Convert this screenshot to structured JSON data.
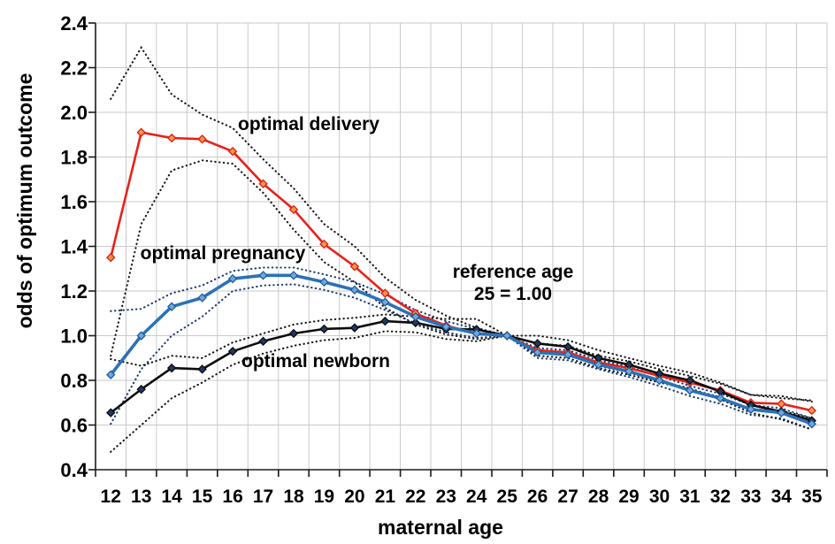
{
  "figure": {
    "y_axis_title": "odds of optimum outcome",
    "x_axis_title": "maternal age",
    "annotations": {
      "delivery": "optimal delivery",
      "pregnancy": "optimal pregnancy",
      "newborn": "optimal newborn",
      "reference_line1": "reference age",
      "reference_line2": "25 = 1.00"
    }
  },
  "chart_data": {
    "type": "line",
    "title": "",
    "xlabel": "maternal age",
    "ylabel": "odds of optimum outcome",
    "x": [
      12,
      13,
      14,
      15,
      16,
      17,
      18,
      19,
      20,
      21,
      22,
      23,
      24,
      25,
      26,
      27,
      28,
      29,
      30,
      31,
      32,
      33,
      34,
      35
    ],
    "ylim": [
      0.4,
      2.4
    ],
    "ytick_step": 0.2,
    "yticks": [
      0.4,
      0.6,
      0.8,
      1.0,
      1.2,
      1.4,
      1.6,
      1.8,
      2.0,
      2.2,
      2.4
    ],
    "grid": true,
    "legend_position": "none",
    "reference_note": "reference age 25 = 1.00",
    "series": [
      {
        "name": "optimal delivery",
        "line_color": "#e8211a",
        "line_width": 2.6,
        "marker": "diamond",
        "marker_fill": "#f79646",
        "marker_stroke": "#d81e14",
        "ci_color": "#161616",
        "values": [
          1.35,
          1.91,
          1.885,
          1.88,
          1.825,
          1.68,
          1.565,
          1.41,
          1.31,
          1.19,
          1.1,
          1.045,
          1.01,
          1.0,
          0.935,
          0.925,
          0.88,
          0.855,
          0.82,
          0.79,
          0.755,
          0.7,
          0.695,
          0.665
        ],
        "ci_upper": [
          2.06,
          2.29,
          2.08,
          1.99,
          1.93,
          1.79,
          1.66,
          1.5,
          1.4,
          1.26,
          1.16,
          1.09,
          1.035,
          1.0,
          0.965,
          0.955,
          0.91,
          0.885,
          0.85,
          0.82,
          0.785,
          0.735,
          0.73,
          0.705
        ],
        "ci_lower": [
          0.91,
          1.5,
          1.74,
          1.785,
          1.77,
          1.64,
          1.475,
          1.33,
          1.24,
          1.125,
          1.05,
          1.005,
          0.985,
          1.0,
          0.91,
          0.9,
          0.855,
          0.825,
          0.79,
          0.76,
          0.725,
          0.67,
          0.665,
          0.63
        ]
      },
      {
        "name": "optimal pregnancy",
        "line_color": "#2a72b8",
        "line_width": 3.6,
        "marker": "diamond",
        "marker_fill": "#6fa8dc",
        "marker_stroke": "#1f5c9e",
        "ci_color": "#1f3a70",
        "values": [
          0.825,
          1.0,
          1.13,
          1.17,
          1.255,
          1.27,
          1.27,
          1.24,
          1.205,
          1.15,
          1.085,
          1.04,
          1.01,
          1.0,
          0.925,
          0.915,
          0.87,
          0.84,
          0.8,
          0.755,
          0.72,
          0.67,
          0.655,
          0.605
        ],
        "ci_upper": [
          1.11,
          1.12,
          1.19,
          1.225,
          1.29,
          1.305,
          1.305,
          1.275,
          1.24,
          1.185,
          1.115,
          1.065,
          1.03,
          1.0,
          0.945,
          0.935,
          0.89,
          0.86,
          0.82,
          0.775,
          0.74,
          0.69,
          0.675,
          0.63
        ],
        "ci_lower": [
          0.605,
          0.85,
          1.0,
          1.085,
          1.2,
          1.225,
          1.23,
          1.205,
          1.17,
          1.115,
          1.055,
          1.015,
          0.99,
          1.0,
          0.9,
          0.89,
          0.85,
          0.815,
          0.775,
          0.73,
          0.695,
          0.645,
          0.63,
          0.58
        ]
      },
      {
        "name": "optimal newborn",
        "line_color": "#0d0d0d",
        "line_width": 2.6,
        "marker": "diamond",
        "marker_fill": "#1f3864",
        "marker_stroke": "#0b0b0b",
        "ci_color": "#161616",
        "values": [
          0.655,
          0.76,
          0.855,
          0.85,
          0.93,
          0.975,
          1.01,
          1.03,
          1.035,
          1.065,
          1.058,
          1.03,
          1.028,
          1.0,
          0.965,
          0.95,
          0.9,
          0.87,
          0.83,
          0.8,
          0.75,
          0.69,
          0.66,
          0.62
        ],
        "ci_upper": [
          0.895,
          0.865,
          0.91,
          0.9,
          0.97,
          1.01,
          1.05,
          1.07,
          1.08,
          1.095,
          1.085,
          1.075,
          1.075,
          1.0,
          1.0,
          0.98,
          0.935,
          0.9,
          0.865,
          0.835,
          0.79,
          0.735,
          0.72,
          0.71
        ],
        "ci_lower": [
          0.48,
          0.6,
          0.72,
          0.79,
          0.87,
          0.92,
          0.955,
          0.98,
          0.99,
          1.02,
          1.015,
          0.985,
          0.975,
          1.0,
          0.93,
          0.915,
          0.865,
          0.835,
          0.795,
          0.765,
          0.715,
          0.655,
          0.625,
          0.58
        ]
      }
    ],
    "colors": {
      "background": "#ffffff",
      "gridline": "#c9c9c9",
      "axis": "#1a1a1a",
      "tick_label": "#000000"
    }
  }
}
